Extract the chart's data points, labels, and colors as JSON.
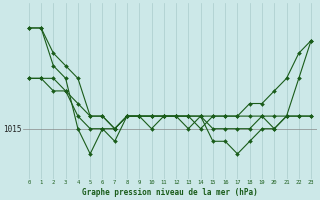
{
  "background_color": "#cce8e8",
  "plot_bg_color": "#cce8e8",
  "grid_color": "#aacccc",
  "line_color": "#1a5c1a",
  "marker_color": "#1a5c1a",
  "xlabel": "Graphe pression niveau de la mer (hPa)",
  "hours": [
    0,
    1,
    2,
    3,
    4,
    5,
    6,
    7,
    8,
    9,
    10,
    11,
    12,
    13,
    14,
    15,
    16,
    17,
    18,
    19,
    20,
    21,
    22,
    23
  ],
  "series1": [
    1023,
    1023,
    1021,
    1020,
    1019,
    1016,
    1016,
    1015,
    1016,
    1016,
    1016,
    1016,
    1016,
    1016,
    1015,
    1016,
    1016,
    1016,
    1017,
    1017,
    1018,
    1019,
    1021,
    1022
  ],
  "series2": [
    1019,
    1019,
    1019,
    1018,
    1017,
    1016,
    1016,
    1015,
    1016,
    1016,
    1016,
    1016,
    1016,
    1016,
    1016,
    1016,
    1016,
    1016,
    1016,
    1016,
    1016,
    1016,
    1016,
    1016
  ],
  "series3": [
    1023,
    1023,
    1020,
    1019,
    1015,
    1013,
    1015,
    1014,
    1016,
    1016,
    1015,
    1016,
    1016,
    1015,
    1016,
    1014,
    1014,
    1013,
    1014,
    1015,
    1015,
    1016,
    1019,
    1022
  ],
  "series4": [
    1019,
    1019,
    1018,
    1018,
    1016,
    1015,
    1015,
    1015,
    1016,
    1016,
    1016,
    1016,
    1016,
    1016,
    1016,
    1015,
    1015,
    1015,
    1015,
    1016,
    1015,
    1016,
    1016,
    1016
  ],
  "ylim": [
    1011,
    1025
  ],
  "ytick_val": 1015,
  "ytick_label": "1015"
}
